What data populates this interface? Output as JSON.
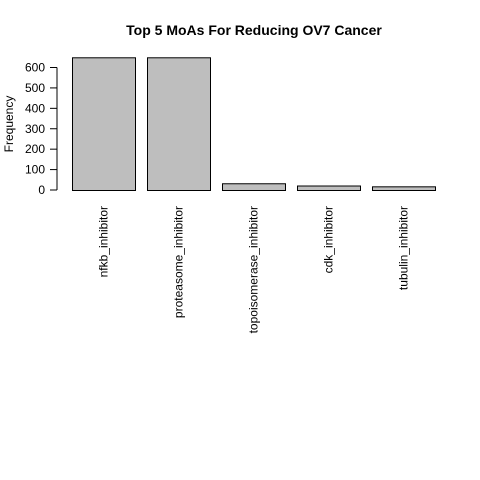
{
  "chart_data": {
    "type": "bar",
    "title": "Top 5 MoAs For Reducing OV7 Cancer",
    "xlabel": "",
    "ylabel": "Frequency",
    "categories": [
      "nfkb_inhibitor",
      "proteasome_inhibitor",
      "topoisomerase_inhibitor",
      "cdk_inhibitor",
      "tubulin_inhibitor"
    ],
    "values": [
      650,
      650,
      33,
      22,
      18
    ],
    "yticks": [
      0,
      100,
      200,
      300,
      400,
      500,
      600
    ],
    "ylim": [
      0,
      650
    ],
    "grid": false,
    "legend": "none",
    "bar_color": "#bebebe"
  }
}
